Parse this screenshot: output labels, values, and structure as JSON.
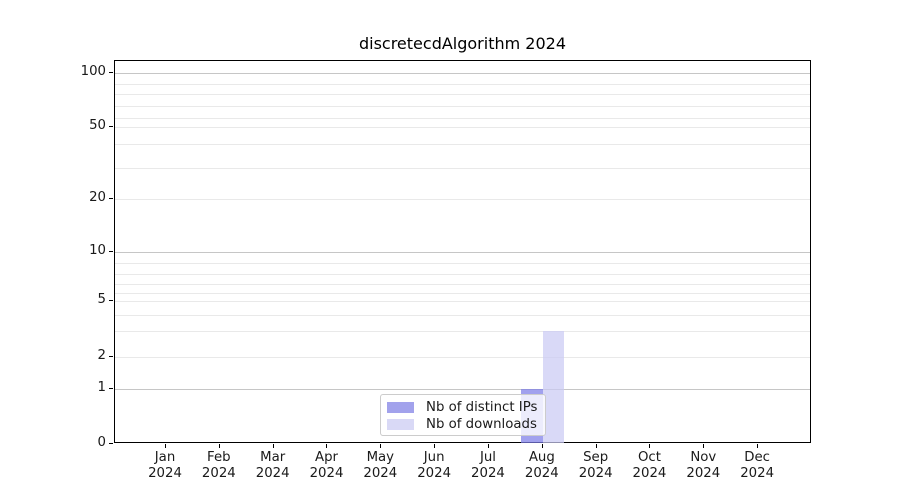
{
  "title": "discretecdAlgorithm 2024",
  "colors": {
    "distinct_ips": "#a2a2ec",
    "downloads": "#d9d9f6",
    "distinct_ips_bar": "rgba(125,125,232,0.72)",
    "downloads_bar": "rgba(203,203,244,0.72)",
    "major_grid": "#c6c6c6",
    "minor_grid": "#e9e9e9"
  },
  "legend": {
    "items": [
      {
        "label": "Nb of distinct IPs",
        "color": "#a2a2ec"
      },
      {
        "label": "Nb of downloads",
        "color": "#d9d9f6"
      }
    ]
  },
  "chart_data": {
    "type": "bar",
    "title": "discretecdAlgorithm 2024",
    "categories": [
      "Jan 2024",
      "Feb 2024",
      "Mar 2024",
      "Apr 2024",
      "May 2024",
      "Jun 2024",
      "Jul 2024",
      "Aug 2024",
      "Sep 2024",
      "Oct 2024",
      "Nov 2024",
      "Dec 2024"
    ],
    "series": [
      {
        "name": "Nb of distinct IPs",
        "color": "#a2a2ec",
        "values": [
          0,
          0,
          0,
          0,
          0,
          0,
          0,
          1,
          0,
          0,
          0,
          0
        ]
      },
      {
        "name": "Nb of downloads",
        "color": "#d9d9f6",
        "values": [
          0,
          0,
          0,
          0,
          0,
          0,
          0,
          3,
          0,
          0,
          0,
          0
        ]
      }
    ],
    "xlabel": "",
    "ylabel": "",
    "yscale": "log-like",
    "ylim": [
      0,
      120
    ],
    "yticks": [
      0,
      1,
      2,
      5,
      10,
      20,
      50,
      100
    ],
    "major_gridlines": [
      1,
      10,
      100
    ],
    "minor_gridlines": [
      2,
      3,
      4,
      5,
      6,
      7,
      8,
      9,
      20,
      30,
      40,
      50,
      60,
      70,
      80,
      90
    ],
    "grid": true,
    "legend_position": "lower center"
  }
}
